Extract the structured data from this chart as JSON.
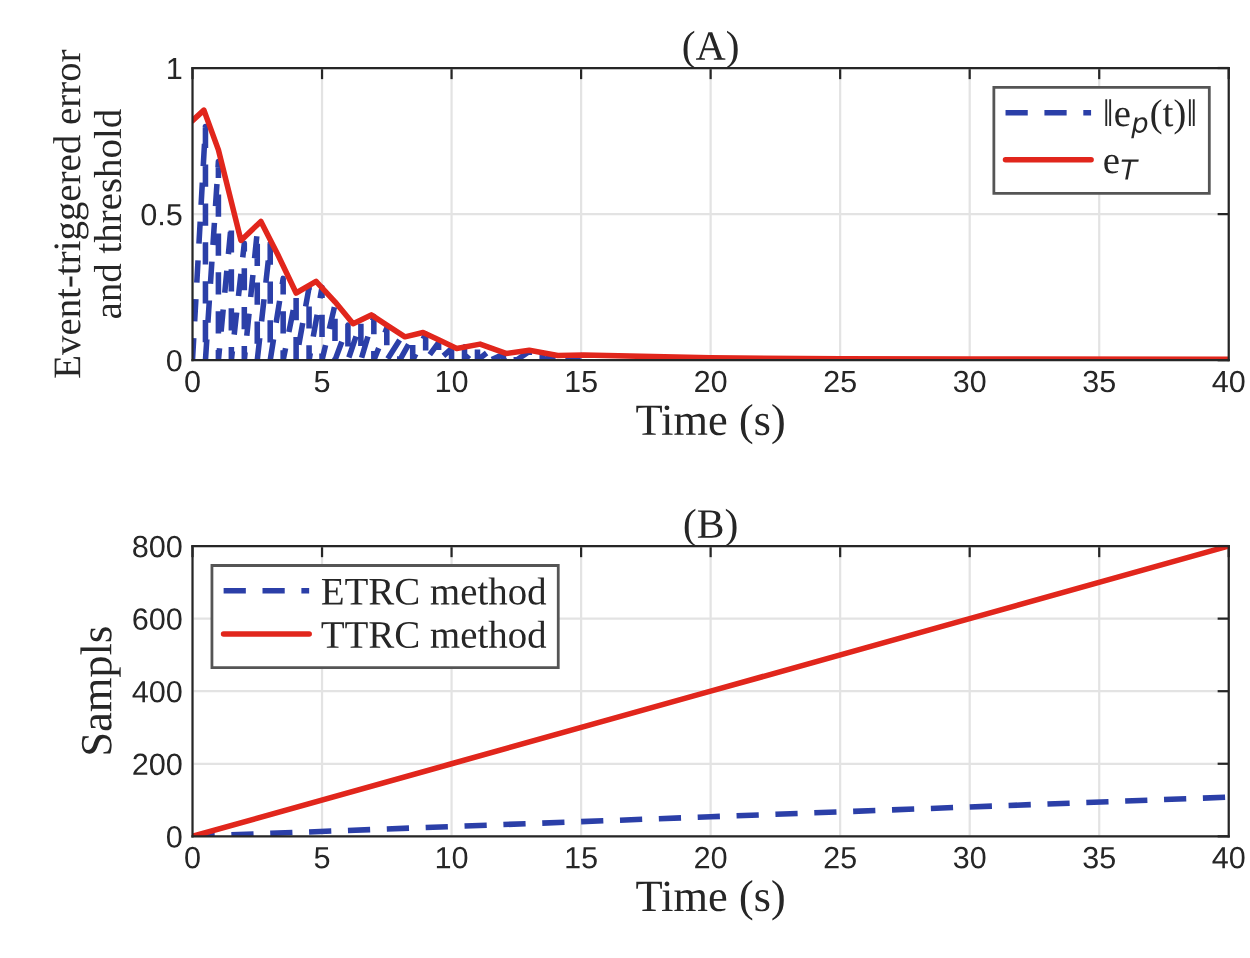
{
  "chart_data": [
    {
      "type": "line",
      "title": "(A)",
      "xlabel": "Time (s)",
      "ylabel": "Event-triggered error\nand threshold",
      "xlim": [
        0,
        40
      ],
      "ylim": [
        0,
        1
      ],
      "xticks": [
        0,
        5,
        10,
        15,
        20,
        25,
        30,
        35,
        40
      ],
      "yticks": [
        0,
        0.5,
        1
      ],
      "grid": true,
      "legend": "top right",
      "series": [
        {
          "name": "‖e$_{p}$(t)‖",
          "color": "#2b3fa8",
          "line_style": "dashed",
          "x": [
            0,
            0.5,
            0.5,
            1,
            1,
            1.5,
            1.5,
            2,
            2,
            2.5,
            2.5,
            3,
            3,
            3.5,
            3.5,
            4,
            4,
            4.5,
            4.5,
            5,
            5,
            5.5,
            5.5,
            6,
            6,
            6.5,
            6.5,
            7,
            7,
            7.5,
            7.5,
            8,
            8,
            8.5,
            8.5,
            9,
            9,
            9.5,
            9.5,
            10,
            10,
            10.5,
            10.5,
            11,
            11,
            11.5,
            11.5,
            12,
            12,
            12.5,
            12.5,
            13,
            13,
            13.5,
            13.5,
            14,
            14,
            14.5,
            14.5,
            15,
            15
          ],
          "values": [
            0,
            0.8,
            0,
            0.68,
            0,
            0.47,
            0,
            0.4,
            0,
            0.44,
            0,
            0.4,
            0,
            0.28,
            0,
            0.22,
            0,
            0.25,
            0,
            0.25,
            0,
            0.19,
            0,
            0.12,
            0,
            0.13,
            0,
            0.15,
            0,
            0.11,
            0,
            0.07,
            0,
            0.08,
            0,
            0.09,
            0,
            0.06,
            0,
            0.04,
            0,
            0.045,
            0,
            0.05,
            0,
            0.035,
            0,
            0.02,
            0,
            0.028,
            0,
            0.03,
            0,
            0.02,
            0,
            0.015,
            0,
            0.015,
            0,
            0.016,
            0
          ]
        },
        {
          "name": "e$_{T}$",
          "color": "#e1261c",
          "line_style": "solid",
          "x": [
            0,
            0.44,
            1,
            1.87,
            2.64,
            3.3,
            4.0,
            4.77,
            5.5,
            6.2,
            6.9,
            7.5,
            8.2,
            8.9,
            9.5,
            10.2,
            11.1,
            12.1,
            13.0,
            14.1,
            15.1,
            20,
            25,
            30,
            40
          ],
          "values": [
            0.82,
            0.856,
            0.72,
            0.41,
            0.475,
            0.36,
            0.23,
            0.27,
            0.2,
            0.125,
            0.155,
            0.12,
            0.08,
            0.095,
            0.07,
            0.04,
            0.055,
            0.023,
            0.034,
            0.016,
            0.018,
            0.008,
            0.005,
            0.004,
            0.003
          ]
        }
      ]
    },
    {
      "type": "line",
      "title": "(B)",
      "xlabel": "Time (s)",
      "ylabel": "Sampls",
      "xlim": [
        0,
        40
      ],
      "ylim": [
        0,
        800
      ],
      "xticks": [
        0,
        5,
        10,
        15,
        20,
        25,
        30,
        35,
        40
      ],
      "yticks": [
        0,
        200,
        400,
        600,
        800
      ],
      "grid": true,
      "legend": "top left",
      "series": [
        {
          "name": "ETRC method",
          "color": "#2b3fa8",
          "line_style": "dashed",
          "x": [
            0,
            10,
            20,
            30,
            40
          ],
          "values": [
            0,
            27,
            54,
            81,
            108
          ]
        },
        {
          "name": "TTRC method",
          "color": "#e1261c",
          "line_style": "solid",
          "x": [
            0,
            10,
            20,
            30,
            40
          ],
          "values": [
            0,
            200,
            400,
            600,
            800
          ]
        }
      ]
    }
  ]
}
